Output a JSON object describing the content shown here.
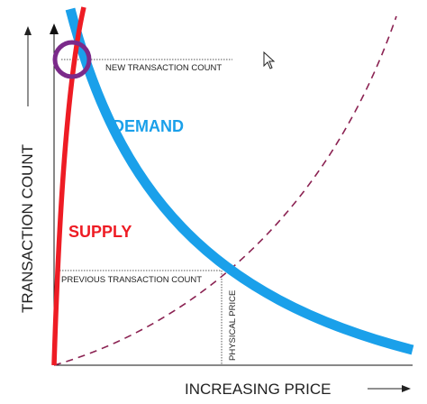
{
  "diagram": {
    "y_axis_title": "TRANSACTION COUNT",
    "x_axis_title": "INCREASING PRICE",
    "demand_label": "DEMAND",
    "supply_label": "SUPPLY",
    "new_transaction_count_label": "NEW TRANSACTION COUNT",
    "previous_transaction_count_label": "PREVIOUS TRANSACTION COUNT",
    "physical_price_label": "PHYSICAL PRICE",
    "colors": {
      "demand": "#1aa0ea",
      "supply": "#ee1c24",
      "dashed_curve": "#8b2252",
      "highlight_circle": "#7b2a8a",
      "axis": "#111111",
      "guide_line": "#555555"
    },
    "icons": [
      "arrow-up-icon",
      "arrow-right-icon",
      "mouse-cursor-icon"
    ]
  }
}
